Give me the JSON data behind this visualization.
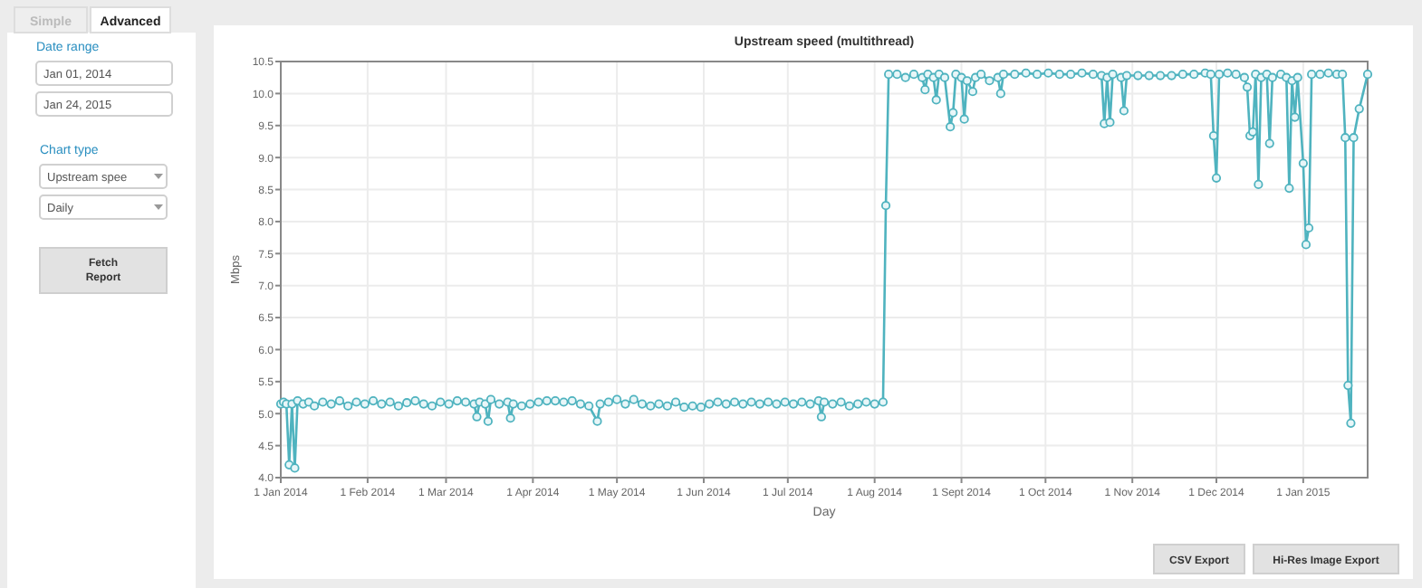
{
  "chart_data": {
    "type": "line",
    "title": "Upstream speed (multithread)",
    "xlabel": "Day",
    "ylabel": "Mbps",
    "xlim": [
      "2014-01-01",
      "2015-01-24"
    ],
    "xticks": [
      {
        "value": "2014-01-01",
        "label": "1 Jan 2014"
      },
      {
        "value": "2014-02-01",
        "label": "1 Feb 2014"
      },
      {
        "value": "2014-03-01",
        "label": "1 Mar 2014"
      },
      {
        "value": "2014-04-01",
        "label": "1 Apr 2014"
      },
      {
        "value": "2014-05-01",
        "label": "1 May 2014"
      },
      {
        "value": "2014-06-01",
        "label": "1 Jun 2014"
      },
      {
        "value": "2014-07-01",
        "label": "1 Jul 2014"
      },
      {
        "value": "2014-08-01",
        "label": "1 Aug 2014"
      },
      {
        "value": "2014-09-01",
        "label": "1 Sept 2014"
      },
      {
        "value": "2014-10-01",
        "label": "1 Oct 2014"
      },
      {
        "value": "2014-11-01",
        "label": "1 Nov 2014"
      },
      {
        "value": "2014-12-01",
        "label": "1 Dec 2014"
      },
      {
        "value": "2015-01-01",
        "label": "1 Jan 2015"
      }
    ],
    "ylim": [
      4,
      10.5
    ],
    "yticks": [
      {
        "value": 4,
        "label": "4.0"
      },
      4.5,
      {
        "value": 5,
        "label": "5.0"
      },
      5.5,
      {
        "value": 6,
        "label": "6.0"
      },
      6.5,
      {
        "value": 7,
        "label": "7.0"
      },
      7.5,
      {
        "value": 8,
        "label": "8.0"
      },
      8.5,
      {
        "value": 9,
        "label": "9.0"
      },
      9.5,
      {
        "value": 10,
        "label": "10.0"
      },
      10.5
    ],
    "grid": true,
    "marker": "circle",
    "annotations": [
      "Simple",
      "Advanced",
      "Date range",
      "Jan 01, 2014",
      "Jan 24, 2015",
      "Chart type",
      "Upstream spee",
      "Daily",
      "Fetch Report",
      "CSV Export",
      "Hi-Res Image Export"
    ],
    "series": [
      {
        "color": "#4fb3bf",
        "x": [
          "2014-01-01",
          "2014-01-02",
          "2014-01-03",
          "2014-01-04",
          "2014-01-05",
          "2014-01-06",
          "2014-01-07",
          "2014-01-09",
          "2014-01-11",
          "2014-01-13",
          "2014-01-16",
          "2014-01-19",
          "2014-01-22",
          "2014-01-25",
          "2014-01-28",
          "2014-01-31",
          "2014-02-03",
          "2014-02-06",
          "2014-02-09",
          "2014-02-12",
          "2014-02-15",
          "2014-02-18",
          "2014-02-21",
          "2014-02-24",
          "2014-02-27",
          "2014-03-02",
          "2014-03-05",
          "2014-03-08",
          "2014-03-11",
          "2014-03-12",
          "2014-03-13",
          "2014-03-15",
          "2014-03-16",
          "2014-03-17",
          "2014-03-20",
          "2014-03-23",
          "2014-03-24",
          "2014-03-25",
          "2014-03-28",
          "2014-03-31",
          "2014-04-03",
          "2014-04-06",
          "2014-04-09",
          "2014-04-12",
          "2014-04-15",
          "2014-04-18",
          "2014-04-21",
          "2014-04-24",
          "2014-04-25",
          "2014-04-28",
          "2014-05-01",
          "2014-05-04",
          "2014-05-07",
          "2014-05-10",
          "2014-05-13",
          "2014-05-16",
          "2014-05-19",
          "2014-05-22",
          "2014-05-25",
          "2014-05-28",
          "2014-05-31",
          "2014-06-03",
          "2014-06-06",
          "2014-06-09",
          "2014-06-12",
          "2014-06-15",
          "2014-06-18",
          "2014-06-21",
          "2014-06-24",
          "2014-06-27",
          "2014-06-30",
          "2014-07-03",
          "2014-07-06",
          "2014-07-09",
          "2014-07-12",
          "2014-07-13",
          "2014-07-14",
          "2014-07-17",
          "2014-07-20",
          "2014-07-23",
          "2014-07-26",
          "2014-07-29",
          "2014-08-01",
          "2014-08-04",
          "2014-08-05",
          "2014-08-06",
          "2014-08-09",
          "2014-08-12",
          "2014-08-15",
          "2014-08-18",
          "2014-08-19",
          "2014-08-20",
          "2014-08-22",
          "2014-08-23",
          "2014-08-24",
          "2014-08-26",
          "2014-08-28",
          "2014-08-29",
          "2014-08-30",
          "2014-09-01",
          "2014-09-02",
          "2014-09-03",
          "2014-09-05",
          "2014-09-06",
          "2014-09-08",
          "2014-09-11",
          "2014-09-14",
          "2014-09-15",
          "2014-09-16",
          "2014-09-20",
          "2014-09-24",
          "2014-09-28",
          "2014-10-02",
          "2014-10-06",
          "2014-10-10",
          "2014-10-14",
          "2014-10-18",
          "2014-10-21",
          "2014-10-22",
          "2014-10-23",
          "2014-10-24",
          "2014-10-25",
          "2014-10-28",
          "2014-10-29",
          "2014-10-30",
          "2014-11-03",
          "2014-11-07",
          "2014-11-11",
          "2014-11-15",
          "2014-11-19",
          "2014-11-23",
          "2014-11-27",
          "2014-11-29",
          "2014-11-30",
          "2014-12-01",
          "2014-12-02",
          "2014-12-05",
          "2014-12-08",
          "2014-12-11",
          "2014-12-12",
          "2014-12-13",
          "2014-12-14",
          "2014-12-15",
          "2014-12-16",
          "2014-12-17",
          "2014-12-19",
          "2014-12-20",
          "2014-12-21",
          "2014-12-24",
          "2014-12-26",
          "2014-12-27",
          "2014-12-28",
          "2014-12-29",
          "2014-12-30",
          "2015-01-01",
          "2015-01-02",
          "2015-01-03",
          "2015-01-04",
          "2015-01-07",
          "2015-01-10",
          "2015-01-13",
          "2015-01-15",
          "2015-01-16",
          "2015-01-17",
          "2015-01-18",
          "2015-01-19",
          "2015-01-21",
          "2015-01-24"
        ],
        "values": [
          5.15,
          5.18,
          5.15,
          4.2,
          5.15,
          4.15,
          5.2,
          5.15,
          5.18,
          5.12,
          5.18,
          5.15,
          5.2,
          5.12,
          5.18,
          5.15,
          5.2,
          5.15,
          5.18,
          5.12,
          5.17,
          5.2,
          5.15,
          5.12,
          5.18,
          5.15,
          5.2,
          5.18,
          5.15,
          4.95,
          5.18,
          5.15,
          4.88,
          5.22,
          5.15,
          5.18,
          4.93,
          5.15,
          5.12,
          5.15,
          5.18,
          5.2,
          5.2,
          5.18,
          5.2,
          5.15,
          5.12,
          4.88,
          5.15,
          5.18,
          5.22,
          5.15,
          5.22,
          5.15,
          5.12,
          5.15,
          5.12,
          5.18,
          5.1,
          5.12,
          5.1,
          5.15,
          5.18,
          5.15,
          5.18,
          5.15,
          5.18,
          5.15,
          5.18,
          5.15,
          5.18,
          5.15,
          5.18,
          5.15,
          5.2,
          4.95,
          5.18,
          5.15,
          5.18,
          5.12,
          5.15,
          5.18,
          5.15,
          5.18,
          8.25,
          10.3,
          10.3,
          10.25,
          10.3,
          10.25,
          10.06,
          10.3,
          10.25,
          9.9,
          10.3,
          10.25,
          9.48,
          9.7,
          10.3,
          10.25,
          9.6,
          10.2,
          10.03,
          10.25,
          10.3,
          10.2,
          10.25,
          10.0,
          10.3,
          10.3,
          10.32,
          10.3,
          10.32,
          10.3,
          10.3,
          10.32,
          10.3,
          10.28,
          9.53,
          10.25,
          9.55,
          10.3,
          10.25,
          9.73,
          10.28,
          10.28,
          10.28,
          10.28,
          10.28,
          10.3,
          10.3,
          10.32,
          10.3,
          9.34,
          8.68,
          10.3,
          10.32,
          10.3,
          10.25,
          10.1,
          9.34,
          9.4,
          10.3,
          8.58,
          10.25,
          10.3,
          9.22,
          10.25,
          10.3,
          10.25,
          8.52,
          10.2,
          9.63,
          10.25,
          8.91,
          7.64,
          7.9,
          10.3,
          10.3,
          10.32,
          10.3,
          10.3,
          9.31,
          5.44,
          4.85,
          9.31,
          9.76,
          10.3
        ]
      }
    ]
  }
}
